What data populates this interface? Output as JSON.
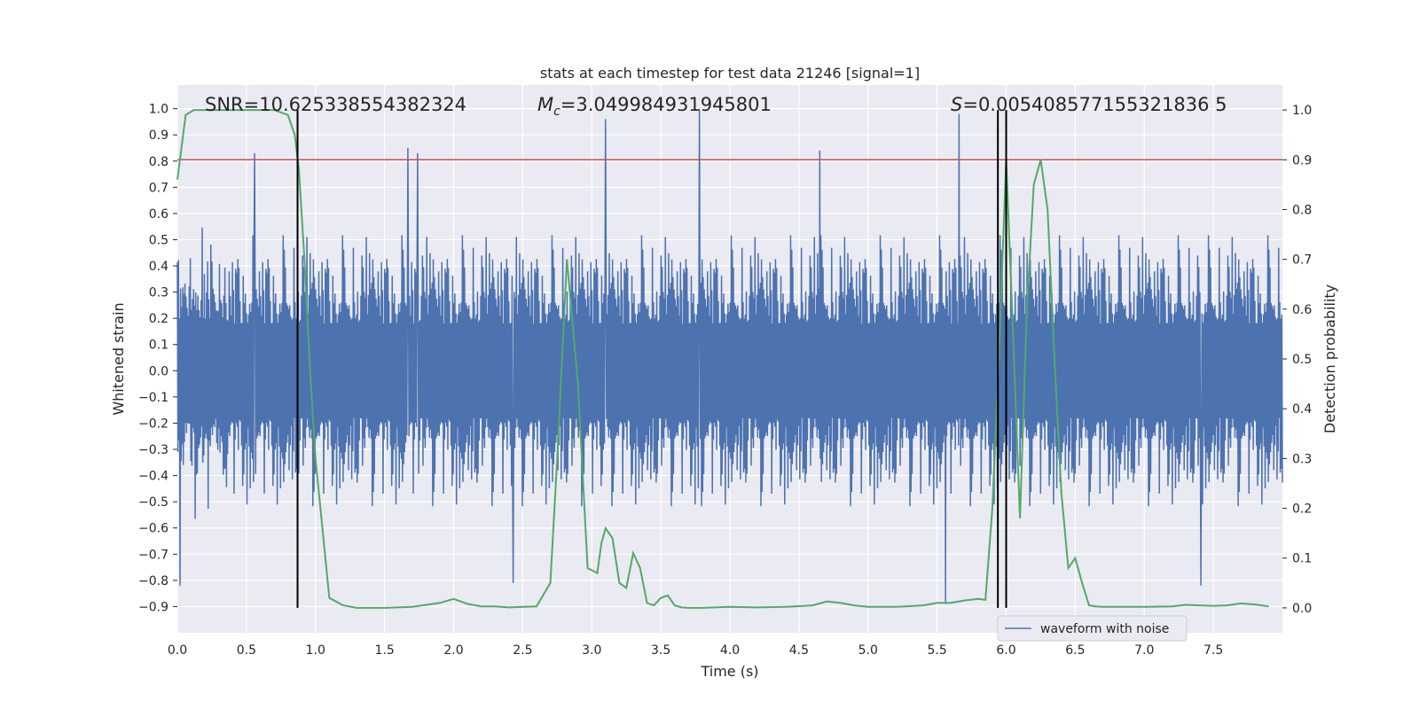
{
  "chart_data": {
    "type": "line",
    "title": "stats at each timestep for test data 21246 [signal=1]",
    "xlabel": "Time (s)",
    "ylabel_left": "Whitened strain",
    "ylabel_right": "Detection probability",
    "xlim": [
      0.0,
      8.0
    ],
    "ylim_left": [
      -1.0,
      1.09
    ],
    "ylim_right": [
      -0.05,
      1.05
    ],
    "x_ticks": [
      0.0,
      0.5,
      1.0,
      1.5,
      2.0,
      2.5,
      3.0,
      3.5,
      4.0,
      4.5,
      5.0,
      5.5,
      6.0,
      6.5,
      7.0,
      7.5
    ],
    "x_tick_labels": [
      "0.0",
      "0.5",
      "1.0",
      "1.5",
      "2.0",
      "2.5",
      "3.0",
      "3.5",
      "4.0",
      "4.5",
      "5.0",
      "5.5",
      "6.0",
      "6.5",
      "7.0",
      "7.5"
    ],
    "y_left_ticks": [
      1.0,
      0.9,
      0.8,
      0.7,
      0.6,
      0.5,
      0.4,
      0.3,
      0.2,
      0.1,
      0.0,
      -0.1,
      -0.2,
      -0.3,
      -0.4,
      -0.5,
      -0.6,
      -0.7,
      -0.8,
      -0.9
    ],
    "y_left_tick_labels": [
      "1.0",
      "0.9",
      "0.8",
      "0.7",
      "0.6",
      "0.5",
      "0.4",
      "0.3",
      "0.2",
      "0.1",
      "0.0",
      "−0.1",
      "−0.2",
      "−0.3",
      "−0.4",
      "−0.5",
      "−0.6",
      "−0.7",
      "−0.8",
      "−0.9"
    ],
    "y_right_ticks": [
      1.0,
      0.9,
      0.8,
      0.7,
      0.6,
      0.5,
      0.4,
      0.3,
      0.2,
      0.1,
      0.0
    ],
    "y_right_tick_labels": [
      "1.0",
      "0.9",
      "0.8",
      "0.7",
      "0.6",
      "0.5",
      "0.4",
      "0.3",
      "0.2",
      "0.1",
      "0.0"
    ],
    "annotations": {
      "snr": "SNR=10.625338554382324",
      "mc_symbol": "M",
      "mc_sub": "c",
      "mc_value": "=3.049984931945801",
      "s_symbol": "S",
      "s_value": "=0.005408577155321836 5"
    },
    "legend": {
      "label": "waveform with noise",
      "location": "lower right"
    },
    "threshold_right": 0.9,
    "vertical_lines_s": [
      0.87,
      5.94,
      6.0
    ],
    "waveform": {
      "name": "waveform with noise",
      "sample_count": 2048,
      "typical_amplitude": 0.45,
      "max": 1.0,
      "min": -0.9,
      "notable_peaks": [
        {
          "t": 0.56,
          "v": 0.83
        },
        {
          "t": 1.67,
          "v": 0.85
        },
        {
          "t": 1.74,
          "v": 0.83
        },
        {
          "t": 3.1,
          "v": 0.96
        },
        {
          "t": 3.78,
          "v": 1.0
        },
        {
          "t": 4.65,
          "v": 0.84
        },
        {
          "t": 5.66,
          "v": 0.98
        },
        {
          "t": 5.56,
          "v": -0.89
        },
        {
          "t": 2.43,
          "v": -0.81
        },
        {
          "t": 7.41,
          "v": -0.82
        },
        {
          "t": 0.02,
          "v": -0.82
        }
      ]
    },
    "probability_series": {
      "name": "detection probability",
      "x": [
        0.0,
        0.06,
        0.12,
        0.2,
        0.3,
        0.4,
        0.5,
        0.6,
        0.7,
        0.8,
        0.85,
        0.88,
        0.92,
        0.96,
        1.0,
        1.05,
        1.1,
        1.2,
        1.3,
        1.5,
        1.7,
        1.9,
        2.0,
        2.1,
        2.2,
        2.3,
        2.4,
        2.5,
        2.6,
        2.7,
        2.75,
        2.82,
        2.9,
        2.97,
        3.04,
        3.07,
        3.1,
        3.15,
        3.2,
        3.25,
        3.3,
        3.35,
        3.4,
        3.45,
        3.5,
        3.55,
        3.6,
        3.65,
        3.7,
        3.8,
        4.0,
        4.2,
        4.4,
        4.6,
        4.7,
        4.8,
        4.9,
        5.0,
        5.2,
        5.4,
        5.5,
        5.6,
        5.7,
        5.8,
        5.85,
        5.9,
        5.94,
        6.0,
        6.05,
        6.1,
        6.15,
        6.2,
        6.25,
        6.3,
        6.35,
        6.4,
        6.45,
        6.5,
        6.55,
        6.6,
        6.65,
        6.7,
        7.0,
        7.2,
        7.3,
        7.4,
        7.5,
        7.6,
        7.7,
        7.8,
        7.9
      ],
      "values": [
        0.86,
        0.99,
        1.0,
        1.0,
        1.0,
        1.0,
        1.0,
        1.0,
        1.0,
        0.99,
        0.95,
        0.88,
        0.7,
        0.48,
        0.3,
        0.16,
        0.02,
        0.005,
        0.0,
        0.0,
        0.002,
        0.01,
        0.018,
        0.008,
        0.003,
        0.003,
        0.001,
        0.002,
        0.003,
        0.05,
        0.3,
        0.7,
        0.45,
        0.08,
        0.07,
        0.13,
        0.16,
        0.14,
        0.05,
        0.04,
        0.11,
        0.08,
        0.01,
        0.005,
        0.02,
        0.025,
        0.005,
        0.001,
        0.0,
        0.0,
        0.002,
        0.001,
        0.002,
        0.005,
        0.013,
        0.01,
        0.005,
        0.002,
        0.002,
        0.005,
        0.01,
        0.01,
        0.015,
        0.018,
        0.016,
        0.2,
        0.45,
        0.9,
        0.55,
        0.18,
        0.6,
        0.85,
        0.9,
        0.8,
        0.5,
        0.23,
        0.08,
        0.1,
        0.05,
        0.005,
        0.003,
        0.002,
        0.002,
        0.003,
        0.006,
        0.005,
        0.004,
        0.005,
        0.009,
        0.007,
        0.003
      ]
    }
  }
}
